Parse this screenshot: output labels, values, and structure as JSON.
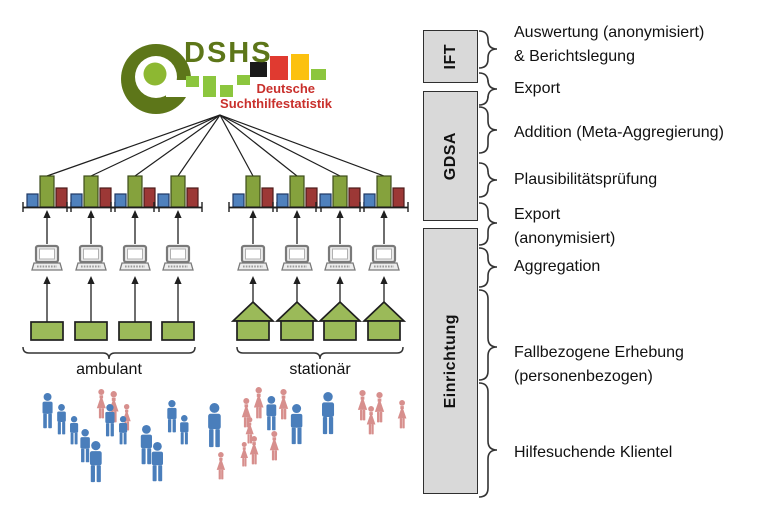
{
  "logo": {
    "acronym": "DSHS",
    "subtitle_line1": "Deutsche",
    "subtitle_line2": "Suchthilfestatistik"
  },
  "groups": [
    {
      "label": "ambulant",
      "building_type": "office",
      "building_count": 4
    },
    {
      "label": "stationär",
      "building_type": "house",
      "building_count": 4
    }
  ],
  "right_panel": {
    "boxes": [
      {
        "label": "IFT"
      },
      {
        "label": "GDSA"
      },
      {
        "label": "Einrichtung"
      }
    ],
    "annotations": [
      {
        "lines": [
          "Auswertung (anonymisiert)",
          "& Berichtslegung"
        ]
      },
      {
        "lines": [
          "Export"
        ]
      },
      {
        "lines": [
          "Addition (Meta-Aggregierung)"
        ]
      },
      {
        "lines": [
          "Plausibilitätsprüfung"
        ]
      },
      {
        "lines": [
          "Export",
          "(anonymisiert)"
        ]
      },
      {
        "lines": [
          "Aggregation"
        ]
      },
      {
        "lines": [
          "Fallbezogene Erhebung",
          "(personenbezogen)"
        ]
      },
      {
        "lines": [
          "Hilfesuchende Klientel"
        ]
      }
    ]
  },
  "colors": {
    "logo_green_dark": "#5d7619",
    "logo_green_bright": "#8db832",
    "logo_green_light": "#8cc63e",
    "logo_black": "#1a1a1a",
    "logo_red": "#e03a30",
    "logo_yellow": "#fcc10f",
    "title_red": "#c9302c",
    "bar_blue": "#4f81bd",
    "bar_blue_border": "#1f3864",
    "bar_green": "#85a23d",
    "bar_green_border": "#3e4d1c",
    "bar_red": "#9c3836",
    "bar_red_border": "#4e1b1a",
    "building_green": "#9bba59",
    "outline": "#1f1f1f",
    "brace_grey": "#333333",
    "box_fill": "#d9d9d9",
    "male_blue": "#4a7ebb",
    "female_pink": "#d78f8d",
    "laptop_grey": "#7a7a7a"
  },
  "clientele": {
    "people": [
      [
        "m",
        48,
        393,
        36
      ],
      [
        "m",
        62,
        404,
        31
      ],
      [
        "m",
        74,
        416,
        29
      ],
      [
        "m",
        85,
        429,
        34
      ],
      [
        "m",
        96,
        441,
        42
      ],
      [
        "f",
        101,
        389,
        30
      ],
      [
        "f",
        114,
        391,
        32
      ],
      [
        "f",
        127,
        404,
        27
      ],
      [
        "m",
        110,
        404,
        33
      ],
      [
        "m",
        123,
        416,
        29
      ],
      [
        "m",
        146,
        425,
        40
      ],
      [
        "m",
        157,
        442,
        40
      ],
      [
        "m",
        172,
        400,
        33
      ],
      [
        "m",
        184,
        415,
        30
      ],
      [
        "m",
        214,
        403,
        45
      ],
      [
        "f",
        221,
        452,
        28
      ],
      [
        "f",
        246,
        398,
        30
      ],
      [
        "f",
        259,
        387,
        32
      ],
      [
        "f",
        250,
        417,
        27
      ],
      [
        "f",
        254,
        436,
        29
      ],
      [
        "f",
        244,
        442,
        25
      ],
      [
        "m",
        271,
        396,
        35
      ],
      [
        "f",
        284,
        389,
        31
      ],
      [
        "f",
        274,
        431,
        30
      ],
      [
        "m",
        297,
        404,
        41
      ],
      [
        "m",
        328,
        392,
        43
      ],
      [
        "f",
        363,
        390,
        31
      ],
      [
        "f",
        371,
        406,
        29
      ],
      [
        "f",
        380,
        392,
        31
      ],
      [
        "f",
        402,
        400,
        29
      ]
    ]
  }
}
